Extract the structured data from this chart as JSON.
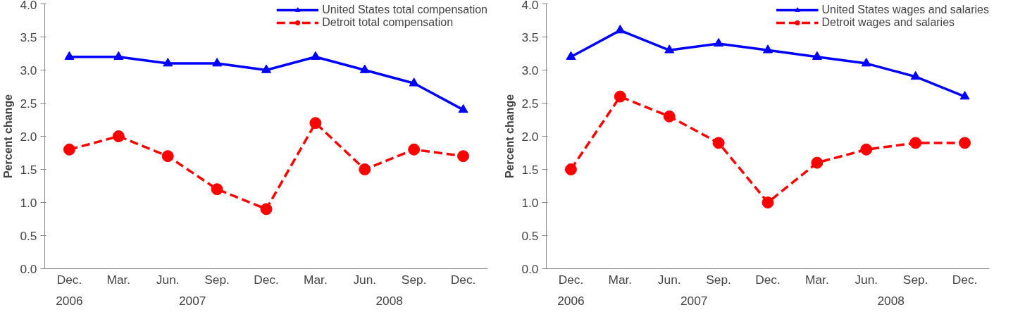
{
  "chart_data": [
    {
      "type": "line",
      "ylabel": "Percent change",
      "categories": [
        "Dec.",
        "Mar.",
        "Jun.",
        "Sep.",
        "Dec.",
        "Mar.",
        "Jun.",
        "Sep.",
        "Dec."
      ],
      "annotations": [
        "2006",
        "2007",
        "2008"
      ],
      "ylim": [
        0,
        4
      ],
      "yticks": [
        {
          "value": 0,
          "label": "0.0"
        },
        {
          "value": 0.5,
          "label": "0.5"
        },
        {
          "value": 1,
          "label": "1.0"
        },
        {
          "value": 1.5,
          "label": "1.5"
        },
        {
          "value": 2,
          "label": "2.0"
        },
        {
          "value": 2.5,
          "label": "2.5"
        },
        {
          "value": 3,
          "label": "3.0"
        },
        {
          "value": 3.5,
          "label": "3.5"
        },
        {
          "value": 4,
          "label": "4.0"
        }
      ],
      "grid": false,
      "legend": "top right",
      "series": [
        {
          "name": "United States total compensation",
          "color": "#0000ff",
          "marker": "triangle",
          "line_style": "solid",
          "values": [
            3.2,
            3.2,
            3.1,
            3.1,
            3.0,
            3.2,
            3.0,
            2.8,
            2.4
          ]
        },
        {
          "name": "Detroit total compensation",
          "color": "#ff0000",
          "marker": "circle",
          "line_style": "dashed",
          "values": [
            1.8,
            2.0,
            1.7,
            1.2,
            0.9,
            2.2,
            1.5,
            1.8,
            1.7
          ]
        }
      ]
    },
    {
      "type": "line",
      "ylabel": "Percent change",
      "categories": [
        "Dec.",
        "Mar.",
        "Jun.",
        "Sep.",
        "Dec.",
        "Mar.",
        "Jun.",
        "Sep.",
        "Dec."
      ],
      "annotations": [
        "2006",
        "2007",
        "2008"
      ],
      "ylim": [
        0,
        4
      ],
      "yticks": [
        {
          "value": 0,
          "label": "0.0"
        },
        {
          "value": 0.5,
          "label": "0.5"
        },
        {
          "value": 1,
          "label": "1.0"
        },
        {
          "value": 1.5,
          "label": "1.5"
        },
        {
          "value": 2,
          "label": "2.0"
        },
        {
          "value": 2.5,
          "label": "2.5"
        },
        {
          "value": 3,
          "label": "3.0"
        },
        {
          "value": 3.5,
          "label": "3.5"
        },
        {
          "value": 4,
          "label": "4.0"
        }
      ],
      "grid": false,
      "legend": "top right",
      "series": [
        {
          "name": "United States wages and salaries",
          "color": "#0000ff",
          "marker": "triangle",
          "line_style": "solid",
          "values": [
            3.2,
            3.6,
            3.3,
            3.4,
            3.3,
            3.2,
            3.1,
            2.9,
            2.6
          ]
        },
        {
          "name": "Detroit wages and salaries",
          "color": "#ff0000",
          "marker": "circle",
          "line_style": "dashed",
          "values": [
            1.5,
            2.6,
            2.3,
            1.9,
            1.0,
            1.6,
            1.8,
            1.9,
            1.9
          ]
        }
      ]
    }
  ]
}
